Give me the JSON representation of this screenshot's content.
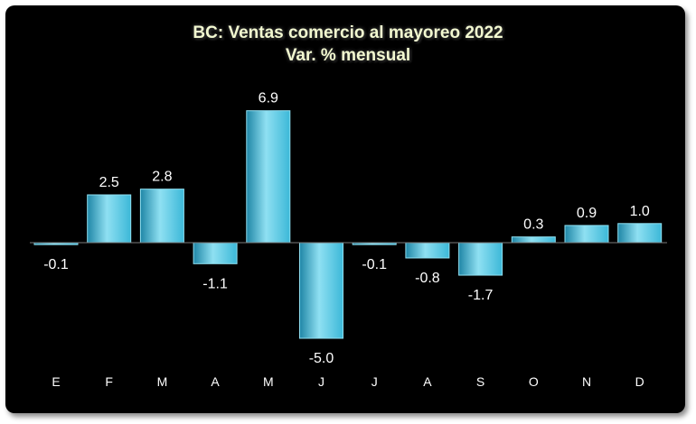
{
  "chart_data": {
    "type": "bar",
    "title": "BC: Ventas comercio al mayoreo 2022",
    "subtitle": "Var. % mensual",
    "categories": [
      "E",
      "F",
      "M",
      "A",
      "M",
      "J",
      "J",
      "A",
      "S",
      "O",
      "N",
      "D"
    ],
    "values": [
      -0.1,
      2.5,
      2.8,
      -1.1,
      6.9,
      -5.0,
      -0.1,
      -0.8,
      -1.7,
      0.3,
      0.9,
      1.0
    ],
    "value_labels": [
      "-0.1",
      "2.5",
      "2.8",
      "-1.1",
      "6.9",
      "-5.0",
      "-0.1",
      "-0.8",
      "-1.7",
      "0.3",
      "0.9",
      "1.0"
    ],
    "xlabel": "",
    "ylabel": "",
    "ylim": [
      -5.0,
      6.9
    ],
    "grid": false,
    "legend": "none",
    "colors": {
      "background": "#000000",
      "bar": "#3cb8d8",
      "bar_light": "#8fe0f2",
      "bar_dark": "#1f86a6",
      "axis": "#7a7a7a",
      "text": "#ffffff",
      "title": "#f2f8d0"
    }
  }
}
